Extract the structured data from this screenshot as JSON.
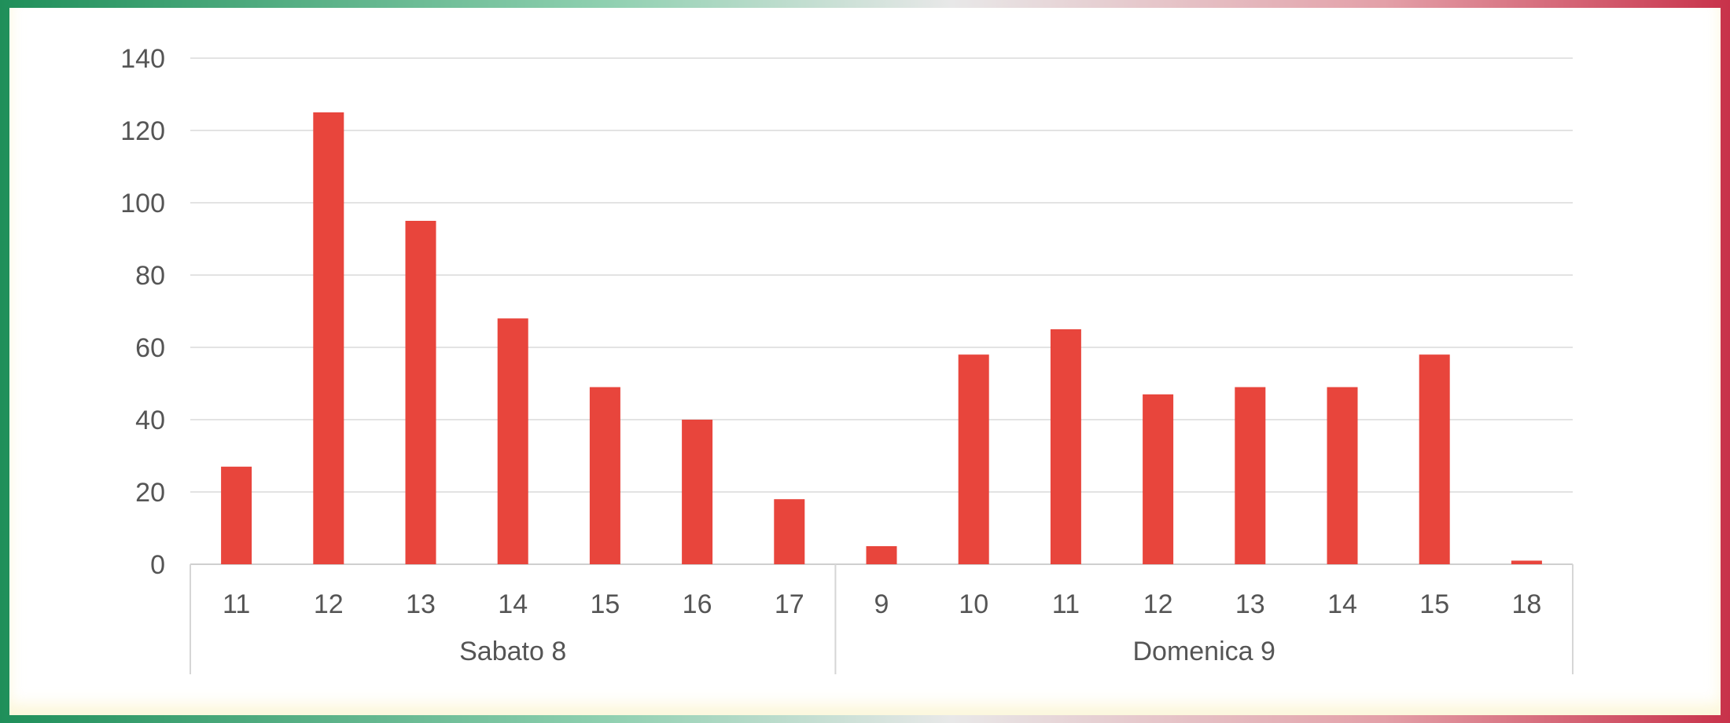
{
  "chart_data": {
    "type": "bar",
    "title": "",
    "xlabel": "",
    "ylabel": "",
    "ylim": [
      0,
      140
    ],
    "yticks": [
      0,
      20,
      40,
      60,
      80,
      100,
      120,
      140
    ],
    "grid": true,
    "bar_color": "#e8453c",
    "groups": [
      {
        "label": "Sabato 8",
        "categories": [
          "11",
          "12",
          "13",
          "14",
          "15",
          "16",
          "17"
        ],
        "values": [
          27,
          125,
          95,
          68,
          49,
          40,
          18
        ]
      },
      {
        "label": "Domenica 9",
        "categories": [
          "9",
          "10",
          "11",
          "12",
          "13",
          "14",
          "15",
          "18"
        ],
        "values": [
          5,
          58,
          65,
          47,
          49,
          49,
          58,
          1
        ]
      }
    ]
  }
}
